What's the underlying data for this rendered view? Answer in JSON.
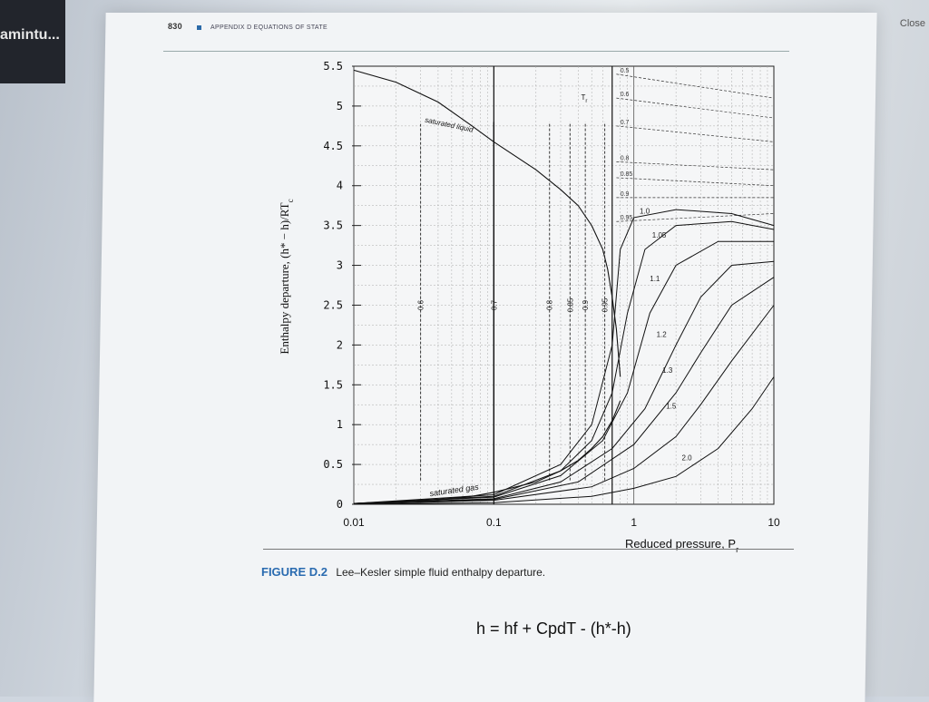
{
  "window": {
    "tab_label": "amintu...",
    "close_label": "Close"
  },
  "page": {
    "page_number": "830",
    "running_header": "APPENDIX D  EQUATIONS OF STATE"
  },
  "figure": {
    "number": "FIGURE D.2",
    "caption": "Lee–Kesler simple fluid enthalpy departure."
  },
  "note": {
    "equation": "h = hf + CpdT - (h*-h)"
  },
  "chart_data": {
    "type": "line",
    "xlabel": "Reduced pressure, P",
    "xlabel_sub": "r",
    "ylabel": "Enthalpy departure, (h* − h)/RT",
    "ylabel_sub": "c",
    "x_scale": "log",
    "xlim": [
      0.01,
      10
    ],
    "ylim": [
      0,
      5.5
    ],
    "x_ticks": [
      0.01,
      0.1,
      1,
      10
    ],
    "x_tick_labels": [
      "0.01",
      "0.1",
      "1",
      "10"
    ],
    "y_ticks": [
      0,
      0.5,
      1,
      1.5,
      2,
      2.5,
      3,
      3.5,
      4,
      4.5,
      5,
      5.5
    ],
    "y_tick_labels": [
      "0",
      "0.5",
      "1",
      "1.5",
      "2",
      "2.5",
      "3",
      "3.5",
      "4",
      "4.5",
      "5",
      "5.5"
    ],
    "grid": true,
    "saturated_liquid_label": "saturated liquid",
    "saturated_gas_label": "saturated gas",
    "tr_symbol": "T",
    "tr_symbol_sub": "r",
    "saturated_liquid": {
      "x": [
        0.01,
        0.02,
        0.04,
        0.07,
        0.1,
        0.2,
        0.3,
        0.4,
        0.5,
        0.6,
        0.65,
        0.7,
        0.75,
        0.8
      ],
      "y": [
        5.45,
        5.3,
        5.05,
        4.75,
        4.55,
        4.2,
        3.95,
        3.75,
        3.5,
        3.2,
        2.95,
        2.6,
        2.2,
        1.6
      ]
    },
    "saturated_gas": {
      "x": [
        0.01,
        0.02,
        0.04,
        0.07,
        0.1,
        0.2,
        0.3,
        0.4,
        0.5,
        0.6,
        0.7,
        0.8
      ],
      "y": [
        0.01,
        0.03,
        0.06,
        0.1,
        0.15,
        0.28,
        0.42,
        0.55,
        0.7,
        0.85,
        1.05,
        1.3
      ]
    },
    "subcritical_isotherms": [
      {
        "tr": "0.6",
        "x_sat": 0.03
      },
      {
        "tr": "0.7",
        "x_sat": 0.1
      },
      {
        "tr": "0.8",
        "x_sat": 0.25
      },
      {
        "tr": "0.85",
        "x_sat": 0.35
      },
      {
        "tr": "0.9",
        "x_sat": 0.45
      },
      {
        "tr": "0.95",
        "x_sat": 0.62
      }
    ],
    "liquid_isotherm_labels": [
      "0.5",
      "0.6",
      "0.7",
      "0.8",
      "0.85",
      "0.9",
      "0.95"
    ],
    "liquid_isotherms": [
      {
        "tr": "0.5",
        "y0": 5.4,
        "y10": 5.1
      },
      {
        "tr": "0.6",
        "y0": 5.1,
        "y10": 4.85
      },
      {
        "tr": "0.7",
        "y0": 4.75,
        "y10": 4.55
      },
      {
        "tr": "0.8",
        "y0": 4.3,
        "y10": 4.2
      },
      {
        "tr": "0.85",
        "y0": 4.1,
        "y10": 4.0
      },
      {
        "tr": "0.9",
        "y0": 3.85,
        "y10": 3.85
      },
      {
        "tr": "0.95",
        "y0": 3.55,
        "y10": 3.65
      }
    ],
    "supercritical_isotherms": [
      {
        "tr": "1.0",
        "pts": [
          [
            0.01,
            0.01
          ],
          [
            0.1,
            0.12
          ],
          [
            0.3,
            0.5
          ],
          [
            0.5,
            1.0
          ],
          [
            0.7,
            2.0
          ],
          [
            0.8,
            3.2
          ],
          [
            1,
            3.6
          ],
          [
            2,
            3.7
          ],
          [
            5,
            3.65
          ],
          [
            10,
            3.5
          ]
        ]
      },
      {
        "tr": "1.05",
        "pts": [
          [
            0.01,
            0.01
          ],
          [
            0.1,
            0.1
          ],
          [
            0.3,
            0.42
          ],
          [
            0.5,
            0.8
          ],
          [
            0.7,
            1.4
          ],
          [
            0.9,
            2.4
          ],
          [
            1.2,
            3.2
          ],
          [
            2,
            3.5
          ],
          [
            5,
            3.55
          ],
          [
            10,
            3.45
          ]
        ]
      },
      {
        "tr": "1.1",
        "pts": [
          [
            0.01,
            0.01
          ],
          [
            0.1,
            0.09
          ],
          [
            0.3,
            0.36
          ],
          [
            0.6,
            0.8
          ],
          [
            0.9,
            1.4
          ],
          [
            1.3,
            2.4
          ],
          [
            2,
            3.0
          ],
          [
            4,
            3.3
          ],
          [
            10,
            3.3
          ]
        ]
      },
      {
        "tr": "1.2",
        "pts": [
          [
            0.01,
            0.01
          ],
          [
            0.1,
            0.07
          ],
          [
            0.3,
            0.28
          ],
          [
            0.7,
            0.7
          ],
          [
            1.2,
            1.2
          ],
          [
            2,
            2.0
          ],
          [
            3,
            2.6
          ],
          [
            5,
            3.0
          ],
          [
            10,
            3.05
          ]
        ]
      },
      {
        "tr": "1.3",
        "pts": [
          [
            0.01,
            0.01
          ],
          [
            0.1,
            0.06
          ],
          [
            0.4,
            0.28
          ],
          [
            1,
            0.75
          ],
          [
            2,
            1.4
          ],
          [
            3,
            1.9
          ],
          [
            5,
            2.5
          ],
          [
            10,
            2.85
          ]
        ]
      },
      {
        "tr": "1.5",
        "pts": [
          [
            0.01,
            0.0
          ],
          [
            0.1,
            0.05
          ],
          [
            0.5,
            0.22
          ],
          [
            1,
            0.45
          ],
          [
            2,
            0.85
          ],
          [
            3,
            1.25
          ],
          [
            5,
            1.8
          ],
          [
            10,
            2.5
          ]
        ]
      },
      {
        "tr": "2.0",
        "pts": [
          [
            0.01,
            0.0
          ],
          [
            0.1,
            0.02
          ],
          [
            0.5,
            0.1
          ],
          [
            1,
            0.2
          ],
          [
            2,
            0.35
          ],
          [
            4,
            0.7
          ],
          [
            7,
            1.2
          ],
          [
            10,
            1.6
          ]
        ]
      }
    ],
    "supercritical_labels": [
      "1.0",
      "1.05",
      "1.1",
      "1.2",
      "1.3",
      "1.5",
      "2.0"
    ],
    "subcritical_labels": [
      "0.6",
      "0.7",
      "0.8",
      "0.85",
      "0.9",
      "0.95"
    ]
  }
}
